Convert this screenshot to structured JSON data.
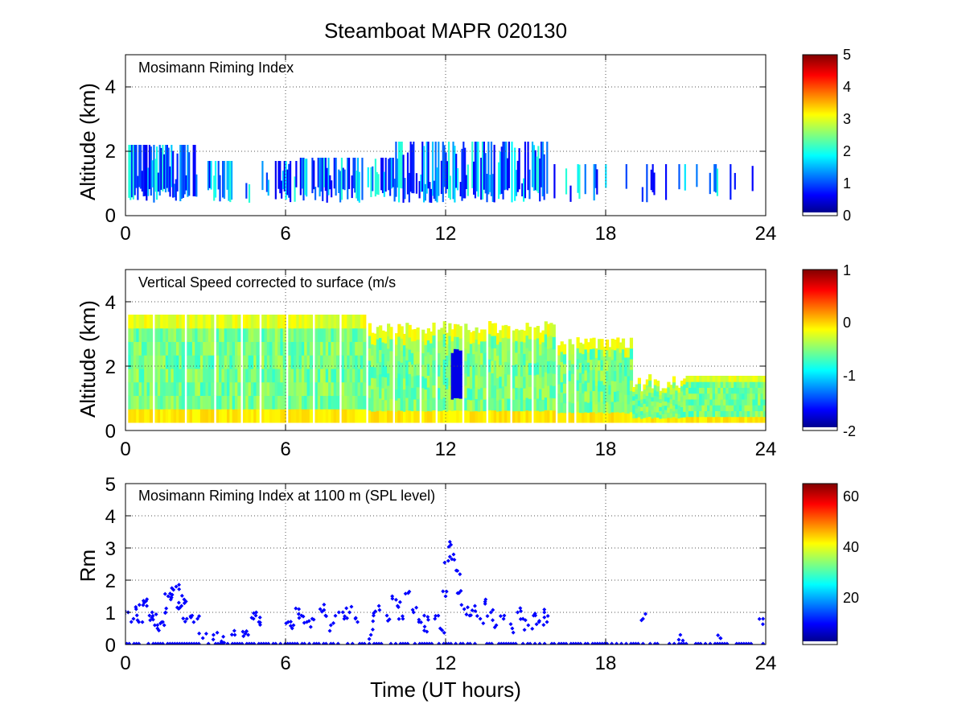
{
  "chart_data": [
    {
      "type": "heatmap",
      "title": "Steamboat MAPR 020130",
      "annotation": "Mosimann Riming Index",
      "ylabel": "Altitude (km)",
      "xlabel": "",
      "xlim": [
        0,
        24
      ],
      "ylim": [
        0,
        5
      ],
      "xticks": [
        "0",
        "6",
        "12",
        "18",
        "24"
      ],
      "yticks": [
        "0",
        "2",
        "4"
      ],
      "grid": "dotted",
      "colorbar": {
        "min": 0,
        "max": 5,
        "ticks": [
          "0",
          "1",
          "2",
          "3",
          "4",
          "5"
        ]
      }
    },
    {
      "type": "heatmap",
      "annotation": "Vertical Speed corrected to surface (m/s",
      "ylabel": "Altitude (km)",
      "xlabel": "",
      "xlim": [
        0,
        24
      ],
      "ylim": [
        0,
        5
      ],
      "xticks": [
        "0",
        "6",
        "12",
        "18",
        "24"
      ],
      "yticks": [
        "0",
        "2",
        "4"
      ],
      "grid": "dotted",
      "colorbar": {
        "min": -2,
        "max": 1,
        "ticks": [
          "-2",
          "-1",
          "0",
          "1"
        ]
      }
    },
    {
      "type": "scatter",
      "annotation": "Mosimann Riming Index at 1100 m (SPL level)",
      "ylabel": "Rm",
      "xlabel": "Time (UT hours)",
      "xlim": [
        0,
        24
      ],
      "ylim": [
        0,
        5
      ],
      "xticks": [
        "0",
        "6",
        "12",
        "18",
        "24"
      ],
      "yticks": [
        "0",
        "1",
        "2",
        "3",
        "4",
        "5"
      ],
      "grid": "dotted",
      "marker_color": "#0000ff",
      "series": [
        {
          "name": "Rm",
          "x": [
            0.1,
            0.3,
            0.4,
            0.5,
            0.7,
            0.8,
            0.9,
            1.0,
            1.1,
            1.2,
            1.4,
            1.5,
            1.6,
            1.7,
            1.8,
            1.9,
            2.0,
            2.1,
            2.2,
            2.3,
            2.5,
            2.7,
            2.9,
            3.3,
            3.6,
            4.1,
            4.4,
            4.6,
            4.8,
            4.9,
            5.0,
            6.1,
            6.3,
            6.5,
            6.6,
            6.8,
            7.0,
            7.3,
            7.5,
            7.7,
            8.0,
            8.2,
            8.4,
            8.7,
            9.2,
            9.3,
            9.5,
            9.8,
            10.0,
            10.2,
            10.4,
            10.6,
            10.8,
            11.0,
            11.2,
            11.3,
            11.6,
            11.8,
            12.0,
            12.1,
            12.2,
            12.3,
            12.4,
            12.5,
            12.7,
            12.9,
            13.1,
            13.3,
            13.5,
            13.7,
            13.9,
            14.2,
            14.5,
            14.7,
            14.9,
            15.1,
            15.3,
            15.5,
            15.7,
            15.8,
            19.4,
            20.8,
            22.3,
            23.9
          ],
          "y": [
            1.0,
            0.8,
            1.1,
            0.7,
            1.3,
            1.2,
            0.9,
            1.0,
            0.6,
            0.5,
            0.7,
            1.0,
            1.5,
            1.4,
            1.7,
            1.8,
            1.3,
            1.2,
            1.4,
            0.8,
            0.9,
            0.8,
            0.2,
            0.3,
            0.1,
            0.3,
            0.4,
            0.3,
            0.8,
            1.0,
            0.7,
            0.7,
            0.6,
            1.1,
            0.9,
            0.7,
            0.8,
            1.1,
            0.9,
            0.6,
            1.0,
            0.8,
            1.0,
            0.7,
            0.3,
            0.9,
            1.2,
            0.9,
            1.5,
            1.2,
            0.8,
            1.6,
            1.0,
            0.7,
            0.9,
            0.4,
            0.8,
            0.5,
            1.5,
            2.6,
            3.1,
            2.8,
            2.3,
            1.6,
            1.1,
            0.9,
            1.2,
            0.8,
            1.4,
            1.0,
            0.6,
            0.9,
            0.5,
            1.0,
            0.8,
            0.6,
            0.9,
            0.7,
            1.0,
            0.7,
            0.8,
            0.3,
            0.2,
            0.8
          ]
        },
        {
          "name": "Rm zero",
          "x_range": [
            0,
            24
          ],
          "y": 0
        }
      ],
      "colorbar": {
        "min": 0,
        "max": 65,
        "ticks": [
          "20",
          "40",
          "60"
        ]
      }
    }
  ]
}
